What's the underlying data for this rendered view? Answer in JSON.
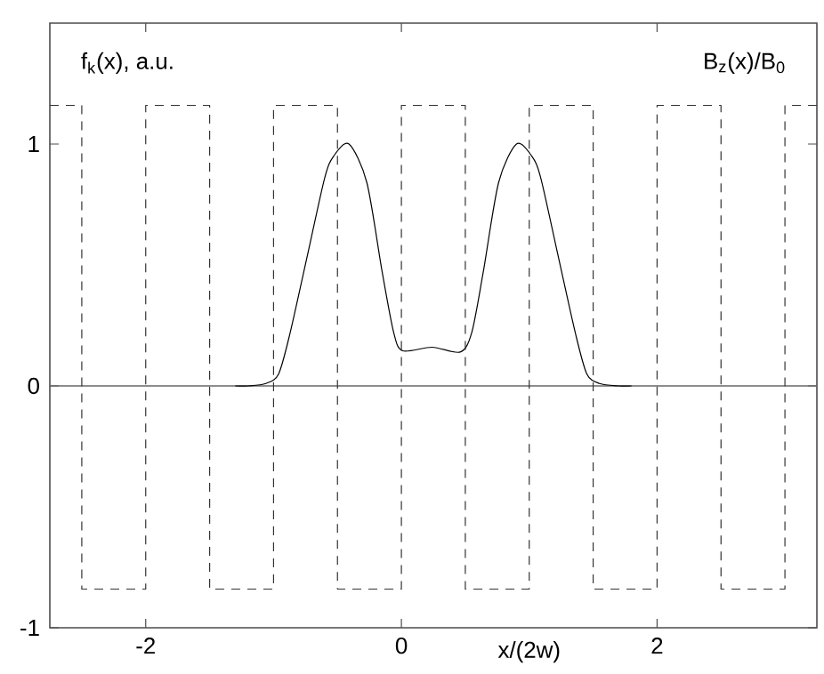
{
  "chart_data": {
    "type": "line",
    "xlabel": "x/(2w)",
    "ylabel": "f$_{k}$(x), a.u.",
    "annotations": [
      "B$_{z}$(x)/B$_{0}$"
    ],
    "xlim": [
      -2.75,
      3.25
    ],
    "ylim": [
      -1,
      1.5
    ],
    "xticks": [
      -2,
      0,
      2
    ],
    "yticks": [
      -1,
      0,
      1
    ],
    "grid": false,
    "series": [
      {
        "color": "#000000",
        "line_style": "solid",
        "x": [
          -1.3,
          -1.2,
          -1.06,
          -0.96,
          -0.87,
          -0.735,
          -0.6,
          -0.53,
          -0.41,
          -0.27,
          -0.15,
          -0.06,
          0.01,
          0.24,
          0.46,
          0.55,
          0.64,
          0.76,
          0.9,
          1.02,
          1.09,
          1.225,
          1.36,
          1.45,
          1.55,
          1.7,
          1.8
        ],
        "values": [
          0,
          0,
          0.01,
          0.05,
          0.22,
          0.54,
          0.86,
          0.95,
          1.0,
          0.84,
          0.47,
          0.22,
          0.145,
          0.16,
          0.14,
          0.22,
          0.47,
          0.84,
          1.0,
          0.95,
          0.86,
          0.54,
          0.22,
          0.05,
          0.01,
          0,
          0
        ]
      },
      {
        "type": "step",
        "color": "#333333",
        "line_style": "dashed",
        "x": [
          -2.75,
          -2.5,
          -2,
          -1.5,
          -1,
          -0.5,
          0,
          0.5,
          1,
          1.5,
          2,
          2.5,
          3,
          3.25
        ],
        "values": [
          1.16,
          -0.84,
          1.16,
          -0.84,
          1.16,
          -0.84,
          1.16,
          -0.84,
          1.16,
          -0.84,
          1.16,
          -0.84,
          1.16,
          1.16
        ]
      }
    ],
    "ref_lines": [
      {
        "axis": "y",
        "value": 0,
        "color": "#666666"
      }
    ]
  }
}
